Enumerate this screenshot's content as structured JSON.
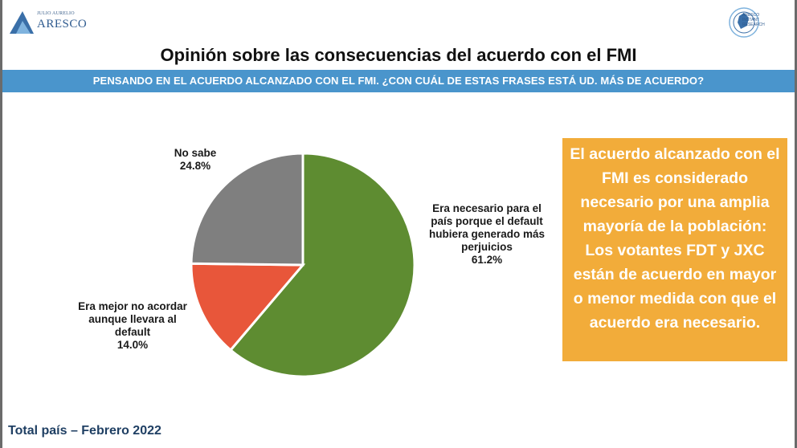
{
  "header": {
    "logo_left_small": "JULIO AURELIO",
    "logo_left_big": "ARESCO",
    "logo_right_text": [
      "ARESCO",
      "INSTANT",
      "RESEARCH"
    ]
  },
  "title": "Opinión sobre las consecuencias del acuerdo con el FMI",
  "question": "PENSANDO EN EL ACUERDO ALCANZADO CON EL FMI. ¿CON CUÁL DE ESTAS FRASES ESTÁ UD. MÁS DE ACUERDO?",
  "chart_data": {
    "type": "pie",
    "slices": [
      {
        "label_lines": [
          "Era necesario para el",
          "país porque el default",
          "hubiera generado más",
          "perjuicios"
        ],
        "value": 61.2,
        "value_label": "61.2%",
        "color": "#5e8c31"
      },
      {
        "label_lines": [
          "Era mejor no acordar",
          "aunque llevara al",
          "default"
        ],
        "value": 14.0,
        "value_label": "14.0%",
        "color": "#e8563a"
      },
      {
        "label_lines": [
          "No sabe"
        ],
        "value": 24.8,
        "value_label": "24.8%",
        "color": "#7f7f7f"
      }
    ],
    "start": "12 o'clock",
    "direction": "clockwise"
  },
  "callout": {
    "text": "El acuerdo alcanzado con el FMI es considerado necesario por una amplia mayoría de la población: Los votantes FDT y JXC están de acuerdo en mayor o menor medida con que el acuerdo era necesario."
  },
  "footer": "Total país – Febrero 2022"
}
